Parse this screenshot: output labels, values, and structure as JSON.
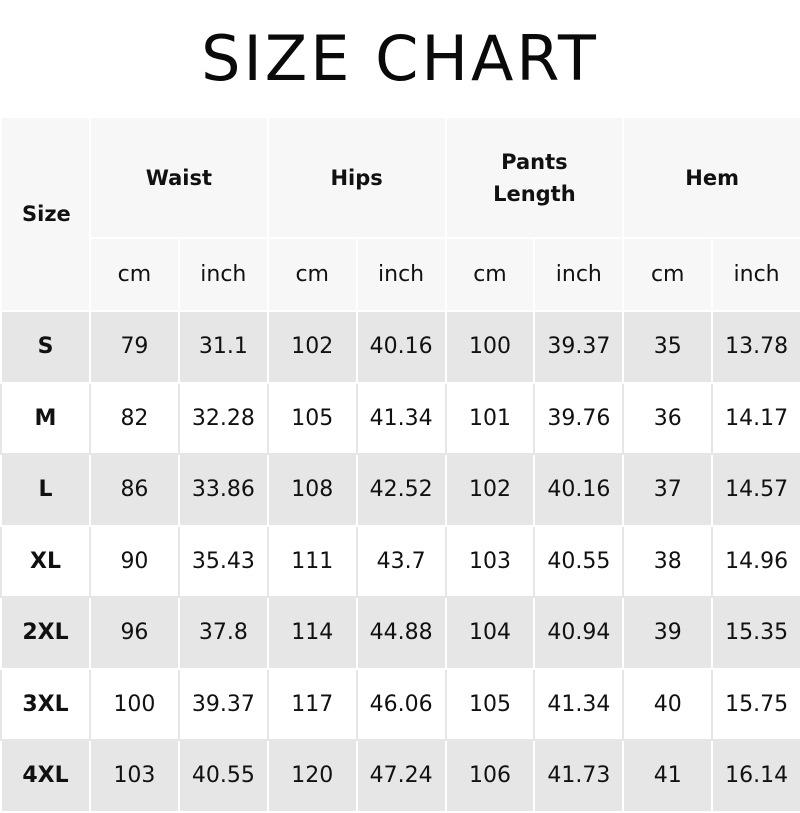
{
  "title": "SIZE CHART",
  "header": {
    "size_label": "Size",
    "groups": [
      "Waist",
      "Hips",
      "Pants Length",
      "Hem"
    ],
    "units": [
      "cm",
      "inch",
      "cm",
      "inch",
      "cm",
      "inch",
      "cm",
      "inch"
    ]
  },
  "rows": [
    {
      "size": "S",
      "values": [
        "79",
        "31.1",
        "102",
        "40.16",
        "100",
        "39.37",
        "35",
        "13.78"
      ]
    },
    {
      "size": "M",
      "values": [
        "82",
        "32.28",
        "105",
        "41.34",
        "101",
        "39.76",
        "36",
        "14.17"
      ]
    },
    {
      "size": "L",
      "values": [
        "86",
        "33.86",
        "108",
        "42.52",
        "102",
        "40.16",
        "37",
        "14.57"
      ]
    },
    {
      "size": "XL",
      "values": [
        "90",
        "35.43",
        "111",
        "43.7",
        "103",
        "40.55",
        "38",
        "14.96"
      ]
    },
    {
      "size": "2XL",
      "values": [
        "96",
        "37.8",
        "114",
        "44.88",
        "104",
        "40.94",
        "39",
        "15.35"
      ]
    },
    {
      "size": "3XL",
      "values": [
        "100",
        "39.37",
        "117",
        "46.06",
        "105",
        "41.34",
        "40",
        "15.75"
      ]
    },
    {
      "size": "4XL",
      "values": [
        "103",
        "40.55",
        "120",
        "47.24",
        "106",
        "41.73",
        "41",
        "16.14"
      ]
    }
  ]
}
